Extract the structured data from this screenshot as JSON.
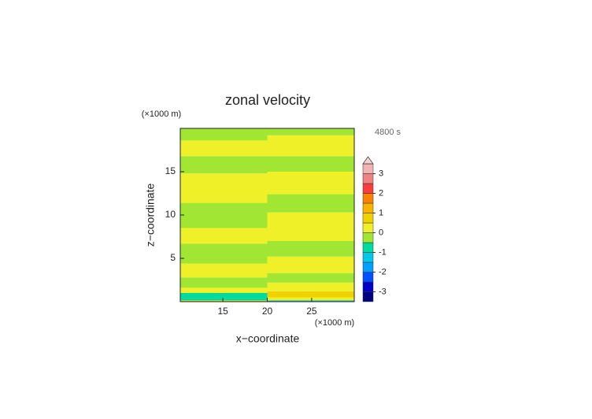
{
  "chart_data": {
    "type": "contour",
    "title": "zonal velocity",
    "x_label": "x−coordinate",
    "y_label": "z−coordinate",
    "x_unit": "(×1000 m)",
    "y_unit": "(×1000 m)",
    "time_label": "4800 s",
    "xlim": [
      10.2,
      29.8
    ],
    "ylim": [
      0,
      20
    ],
    "xticks": [
      15,
      20,
      25
    ],
    "yticks": [
      5,
      10,
      15
    ],
    "columns": [
      {
        "xlim": [
          10.2,
          20
        ],
        "z_edges": [
          0,
          0.15,
          0.45,
          1,
          1.6,
          2.8,
          4.4,
          6.7,
          8.5,
          11.4,
          14.8,
          16.8,
          18.6,
          20
        ],
        "values": [
          0.7,
          -0.8,
          -0.6,
          0.2,
          -0.2,
          0.2,
          -0.2,
          0.2,
          -0.2,
          0.2,
          -0.2,
          0.2,
          -0.2
        ]
      },
      {
        "xlim": [
          20,
          29.8
        ],
        "z_edges": [
          0,
          0.15,
          0.5,
          1.2,
          2.2,
          3.3,
          5.2,
          7,
          10.3,
          12.4,
          15,
          16.8,
          19.2,
          20
        ],
        "values": [
          -1.2,
          0.2,
          0.7,
          0.2,
          -0.2,
          0.2,
          -0.2,
          0.2,
          -0.2,
          0.2,
          -0.2,
          0.2,
          -0.2
        ]
      }
    ],
    "levels": [
      -3.5,
      -3,
      -2.5,
      -2,
      -1.5,
      -1,
      -0.5,
      0,
      0.5,
      1,
      1.5,
      2,
      2.5,
      3,
      3.5
    ],
    "colors": [
      "#000080",
      "#0000c8",
      "#0050ff",
      "#00a0ff",
      "#00c8e6",
      "#00dca0",
      "#a0e632",
      "#f0f028",
      "#f0d200",
      "#fab400",
      "#fa8200",
      "#fa3c3c",
      "#f08282",
      "#f0b4b4"
    ],
    "over_color": "#f5d2d2",
    "colorbar_ticks": [
      -3,
      -2,
      -1,
      0,
      1,
      2,
      3
    ]
  }
}
